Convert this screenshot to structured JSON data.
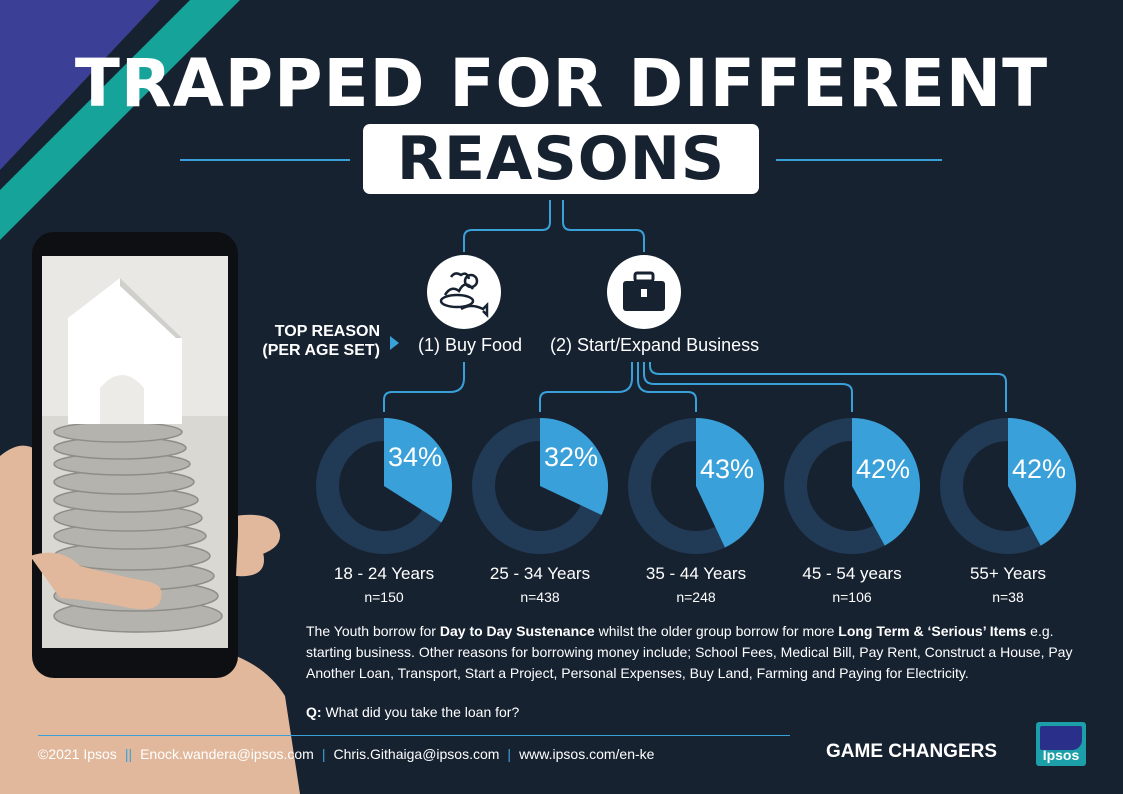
{
  "header": {
    "title_line1": "TRAPPED FOR DIFFERENT",
    "title_line2": "REASONS"
  },
  "reasons": {
    "top_reason_line1": "TOP REASON",
    "top_reason_line2": "(PER AGE SET)",
    "reason1": "(1) Buy Food",
    "reason2": "(2) Start/Expand Business",
    "reason1_icon": "food-icon",
    "reason2_icon": "briefcase-icon"
  },
  "chart_data": {
    "type": "pie",
    "style": "donut",
    "categories": [
      "18 - 24 Years",
      "25 - 34 Years",
      "35 - 44 Years",
      "45 - 54 years",
      "55+ Years"
    ],
    "values": [
      34,
      32,
      43,
      42,
      42
    ],
    "value_labels": [
      "34%",
      "32%",
      "43%",
      "42%",
      "42%"
    ],
    "sample_sizes": [
      "n=150",
      "n=438",
      "n=248",
      "n=106",
      "n=38"
    ],
    "top_reason": [
      "(1) Buy Food",
      "(2) Start/Expand Business",
      "(2) Start/Expand Business",
      "(2) Start/Expand Business",
      "(2) Start/Expand Business"
    ],
    "colors": {
      "value": "#3aa0d9",
      "remainder": "#213a55"
    }
  },
  "description": {
    "part1": "The Youth borrow for ",
    "bold1": "Day to Day Sustenance",
    "part2": " whilst the older group borrow for more ",
    "bold2": "Long Term & ‘Serious’ Items",
    "part3": " e.g. starting business. Other reasons for borrowing money include; School Fees, Medical Bill, Pay Rent, Construct a House, Pay Another Loan, Transport, Start a Project, Personal Expenses, Buy Land, Farming and Paying for Electricity."
  },
  "question": {
    "label": "Q:",
    "text": " What did you take the loan for?"
  },
  "footer": {
    "copyright": "©2021 Ipsos",
    "email1": "Enock.wandera@ipsos.com",
    "email2": "Chris.Githaiga@ipsos.com",
    "website": "www.ipsos.com/en-ke",
    "separator1": "||",
    "separator2": "|",
    "separator3": "|",
    "tagline": "GAME CHANGERS",
    "logo_text": "Ipsos"
  },
  "colors": {
    "background": "#172231",
    "accent_blue": "#3aa0d9",
    "stripe_purple": "#3c3f96",
    "stripe_teal": "#15a39a"
  }
}
